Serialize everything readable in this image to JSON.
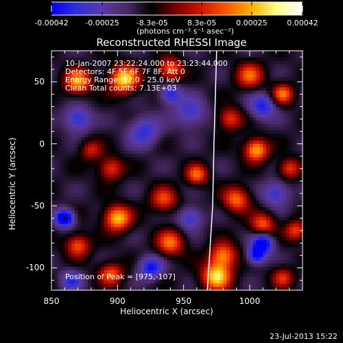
{
  "colorbar": {
    "tick_labels": [
      "-0.00042",
      "-0.00025",
      "-8.3e-05",
      "8.3e-05",
      "0.00025",
      "0.00042"
    ],
    "unit_label": "(photons cm⁻² s⁻¹ asec⁻²)",
    "colormap": [
      "#0000ff",
      "#3030d8",
      "#5a3aa8",
      "#4a2a66",
      "#000000",
      "#7a0000",
      "#d01800",
      "#ff5a00",
      "#ffb400",
      "#ffff90",
      "#ffffff"
    ]
  },
  "chart_data": {
    "type": "heatmap",
    "title": "Reconstructed RHESSI Image",
    "xlabel": "Heliocentric X (arcsec)",
    "ylabel": "Heliocentric Y (arcsec)",
    "xlim": [
      850,
      1040
    ],
    "ylim": [
      -118,
      75
    ],
    "x_ticks": [
      850,
      900,
      950,
      1000
    ],
    "y_ticks": [
      50,
      0,
      -50,
      -100
    ],
    "x_tick_labels": [
      "850",
      "900",
      "950",
      "1000"
    ],
    "y_tick_labels": [
      "50",
      "0",
      "-50",
      "-100"
    ],
    "clim": [
      -0.00042,
      0.00042
    ],
    "limb_line": [
      [
        975,
        75
      ],
      [
        973,
        0
      ],
      [
        972,
        -50
      ],
      [
        968,
        -118
      ]
    ],
    "peak": [
      975,
      -107
    ],
    "blobs": [
      {
        "x": 870,
        "y": 50,
        "amp": 0.00035,
        "r": 10
      },
      {
        "x": 905,
        "y": 52,
        "amp": 0.00042,
        "r": 11
      },
      {
        "x": 940,
        "y": 60,
        "amp": 0.0003,
        "r": 9
      },
      {
        "x": 1000,
        "y": 55,
        "amp": 0.00028,
        "r": 10
      },
      {
        "x": 1025,
        "y": 40,
        "amp": 0.0003,
        "r": 8
      },
      {
        "x": 985,
        "y": 20,
        "amp": 0.00025,
        "r": 9
      },
      {
        "x": 1005,
        "y": -5,
        "amp": 0.00038,
        "r": 9
      },
      {
        "x": 960,
        "y": -25,
        "amp": 0.0003,
        "r": 8
      },
      {
        "x": 1030,
        "y": -20,
        "amp": 0.00025,
        "r": 8
      },
      {
        "x": 895,
        "y": -20,
        "amp": 0.00025,
        "r": 9
      },
      {
        "x": 880,
        "y": -5,
        "amp": 0.0002,
        "r": 8
      },
      {
        "x": 935,
        "y": -45,
        "amp": 0.00025,
        "r": 10
      },
      {
        "x": 990,
        "y": -45,
        "amp": 0.0003,
        "r": 10
      },
      {
        "x": 1010,
        "y": -65,
        "amp": 0.00028,
        "r": 9
      },
      {
        "x": 900,
        "y": -60,
        "amp": 0.0004,
        "r": 10
      },
      {
        "x": 870,
        "y": -82,
        "amp": 0.00028,
        "r": 9
      },
      {
        "x": 940,
        "y": -80,
        "amp": 0.0003,
        "r": 10
      },
      {
        "x": 980,
        "y": -90,
        "amp": 0.00032,
        "r": 10
      },
      {
        "x": 1035,
        "y": -70,
        "amp": 0.00025,
        "r": 8
      },
      {
        "x": 975,
        "y": -107,
        "amp": 0.00042,
        "r": 11
      },
      {
        "x": 895,
        "y": -105,
        "amp": 0.00028,
        "r": 9
      },
      {
        "x": 1025,
        "y": -108,
        "amp": 0.00022,
        "r": 8
      },
      {
        "x": 860,
        "y": -60,
        "amp": -0.00042,
        "r": 7
      },
      {
        "x": 920,
        "y": 10,
        "amp": -0.00022,
        "r": 12
      },
      {
        "x": 955,
        "y": 25,
        "amp": -0.0002,
        "r": 12
      },
      {
        "x": 1010,
        "y": 30,
        "amp": -0.00025,
        "r": 10
      },
      {
        "x": 1020,
        "y": -40,
        "amp": -0.00022,
        "r": 10
      },
      {
        "x": 1010,
        "y": -80,
        "amp": -0.00035,
        "r": 8
      },
      {
        "x": 1005,
        "y": -90,
        "amp": -0.0003,
        "r": 7
      },
      {
        "x": 925,
        "y": -100,
        "amp": -0.00028,
        "r": 9
      },
      {
        "x": 940,
        "y": 40,
        "amp": -0.00025,
        "r": 8
      },
      {
        "x": 870,
        "y": 20,
        "amp": -0.00025,
        "r": 10
      },
      {
        "x": 955,
        "y": -60,
        "amp": -0.00022,
        "r": 9
      },
      {
        "x": 865,
        "y": -110,
        "amp": -0.00022,
        "r": 8
      }
    ]
  },
  "annotations": {
    "time_range": "10-Jan-2007 23:22:24.000 to 23:23:44.000",
    "detectors": "Detectors: 4F 5F 6F 7F 8F, Att 0",
    "energy": "Energy Range: 12.0 - 25.0 keV",
    "clean": "Clean    Total counts: 7.13E+03",
    "peak": "Position of Peak = [975,-107]"
  },
  "timestamp": "23-Jul-2013 15:22"
}
